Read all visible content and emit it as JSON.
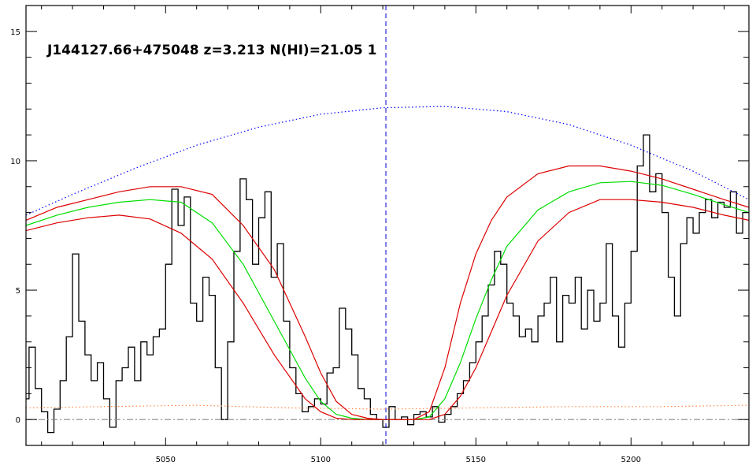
{
  "chart_data": {
    "type": "line",
    "title": "J144127.66+475048 z=3.213 N(HI)=21.05 1",
    "xlabel": "",
    "ylabel": "",
    "xlim": [
      5005,
      5238
    ],
    "ylim": [
      -1,
      16
    ],
    "xticks": [
      5050,
      5100,
      5150,
      5200
    ],
    "yticks": [
      0,
      5,
      10,
      15
    ],
    "grid": false,
    "legend": "none",
    "colors": {
      "flux": "#000000",
      "model": "#00dd00",
      "model_bounds": "#dd0000",
      "continuum": "#0000ff",
      "error": "#ff8844",
      "zero": "#888888",
      "center": "#0000cc"
    },
    "center_line_x": 5121,
    "series": [
      {
        "style": "step",
        "color": "#000000",
        "x": [
          5005,
          5007,
          5009,
          5011,
          5013,
          5015,
          5017,
          5019,
          5021,
          5023,
          5025,
          5027,
          5029,
          5031,
          5033,
          5035,
          5037,
          5039,
          5041,
          5043,
          5045,
          5047,
          5049,
          5051,
          5053,
          5055,
          5057,
          5059,
          5061,
          5063,
          5065,
          5067,
          5069,
          5071,
          5073,
          5075,
          5077,
          5079,
          5081,
          5083,
          5085,
          5087,
          5089,
          5091,
          5093,
          5095,
          5097,
          5099,
          5101,
          5103,
          5105,
          5107,
          5109,
          5111,
          5113,
          5115,
          5117,
          5119,
          5121,
          5123,
          5125,
          5127,
          5129,
          5131,
          5133,
          5135,
          5137,
          5139,
          5141,
          5143,
          5145,
          5147,
          5149,
          5151,
          5153,
          5155,
          5157,
          5159,
          5161,
          5163,
          5165,
          5167,
          5169,
          5171,
          5173,
          5175,
          5177,
          5179,
          5181,
          5183,
          5185,
          5187,
          5189,
          5191,
          5193,
          5195,
          5197,
          5199,
          5201,
          5203,
          5205,
          5207,
          5209,
          5211,
          5213,
          5215,
          5217,
          5219,
          5221,
          5223,
          5225,
          5227,
          5229,
          5231,
          5233,
          5235,
          5237
        ],
        "y": [
          0.8,
          2.8,
          1.2,
          0.3,
          -0.5,
          0.4,
          1.5,
          3.2,
          6.4,
          3.8,
          2.5,
          1.5,
          2.2,
          0.8,
          -0.3,
          1.5,
          2.0,
          2.8,
          1.5,
          3.0,
          2.5,
          3.2,
          3.5,
          6.0,
          8.9,
          7.5,
          8.6,
          4.5,
          3.8,
          5.5,
          4.8,
          2.0,
          0.0,
          3.0,
          6.5,
          9.3,
          8.5,
          6.0,
          7.8,
          8.8,
          5.5,
          6.8,
          3.8,
          2.0,
          1.0,
          0.3,
          0.5,
          0.8,
          0.6,
          1.8,
          2.0,
          4.3,
          3.5,
          2.5,
          1.2,
          0.8,
          0.2,
          0.0,
          -0.3,
          0.5,
          0.0,
          0.1,
          -0.2,
          0.2,
          0.3,
          0.1,
          0.5,
          -0.1,
          0.2,
          0.5,
          1.0,
          1.5,
          2.2,
          3.0,
          4.0,
          5.2,
          6.5,
          6.0,
          4.5,
          4.0,
          3.2,
          3.5,
          3.0,
          4.0,
          4.5,
          5.5,
          3.0,
          4.8,
          4.5,
          5.5,
          3.5,
          5.0,
          3.8,
          4.5,
          6.8,
          4.0,
          2.8,
          4.5,
          6.5,
          9.8,
          11.0,
          8.8,
          9.5,
          8.0,
          5.5,
          4.0,
          6.8,
          7.8,
          7.2,
          8.0,
          8.5,
          7.8,
          8.4,
          8.2,
          8.8,
          7.2,
          8.0
        ]
      },
      {
        "style": "line",
        "color": "#0000ff",
        "dash": "dotted",
        "x": [
          5005,
          5020,
          5040,
          5060,
          5080,
          5100,
          5120,
          5140,
          5160,
          5180,
          5200,
          5220,
          5238
        ],
        "y": [
          7.9,
          8.7,
          9.7,
          10.6,
          11.3,
          11.8,
          12.05,
          12.1,
          11.9,
          11.4,
          10.6,
          9.6,
          8.5
        ]
      },
      {
        "style": "line",
        "color": "#ff8844",
        "dash": "dotted",
        "x": [
          5005,
          5030,
          5060,
          5090,
          5120,
          5150,
          5180,
          5210,
          5238
        ],
        "y": [
          0.45,
          0.5,
          0.55,
          0.45,
          0.4,
          0.45,
          0.5,
          0.5,
          0.55
        ]
      },
      {
        "style": "line",
        "color": "#888888",
        "dash": "dashdot",
        "x": [
          5005,
          5238
        ],
        "y": [
          0,
          0
        ]
      },
      {
        "style": "line",
        "color": "#00dd00",
        "x": [
          5005,
          5015,
          5025,
          5035,
          5045,
          5055,
          5065,
          5075,
          5085,
          5095,
          5100,
          5105,
          5110,
          5115,
          5120,
          5125,
          5130,
          5135,
          5140,
          5145,
          5150,
          5155,
          5160,
          5170,
          5180,
          5190,
          5200,
          5210,
          5220,
          5230,
          5238
        ],
        "y": [
          7.5,
          7.9,
          8.2,
          8.4,
          8.5,
          8.4,
          7.6,
          6.0,
          3.8,
          1.6,
          0.7,
          0.2,
          0.05,
          0.0,
          0.0,
          0.0,
          0.0,
          0.1,
          0.8,
          2.2,
          3.9,
          5.4,
          6.7,
          8.1,
          8.8,
          9.15,
          9.2,
          9.05,
          8.7,
          8.3,
          8.0
        ]
      },
      {
        "style": "line",
        "color": "#dd0000",
        "x": [
          5005,
          5015,
          5025,
          5035,
          5045,
          5055,
          5065,
          5075,
          5085,
          5095,
          5100,
          5105,
          5110,
          5115,
          5120,
          5125,
          5130,
          5135,
          5140,
          5145,
          5150,
          5155,
          5160,
          5170,
          5180,
          5190,
          5200,
          5210,
          5220,
          5230,
          5238
        ],
        "y": [
          7.7,
          8.2,
          8.5,
          8.8,
          9.0,
          9.0,
          8.7,
          7.5,
          5.8,
          3.2,
          1.8,
          0.7,
          0.2,
          0.05,
          0.0,
          0.0,
          0.0,
          0.3,
          2.0,
          4.5,
          6.4,
          7.7,
          8.6,
          9.5,
          9.8,
          9.8,
          9.6,
          9.3,
          8.9,
          8.5,
          8.2
        ]
      },
      {
        "style": "line",
        "color": "#dd0000",
        "x": [
          5005,
          5015,
          5025,
          5035,
          5045,
          5055,
          5065,
          5075,
          5085,
          5095,
          5100,
          5105,
          5110,
          5115,
          5120,
          5125,
          5130,
          5135,
          5140,
          5145,
          5150,
          5155,
          5160,
          5170,
          5180,
          5190,
          5200,
          5210,
          5220,
          5230,
          5238
        ],
        "y": [
          7.3,
          7.6,
          7.8,
          7.9,
          7.75,
          7.2,
          6.2,
          4.5,
          2.5,
          0.8,
          0.3,
          0.05,
          0.0,
          0.0,
          0.0,
          0.0,
          0.0,
          0.0,
          0.2,
          0.9,
          2.0,
          3.4,
          4.8,
          6.9,
          8.0,
          8.5,
          8.5,
          8.4,
          8.2,
          7.9,
          7.7
        ]
      }
    ]
  }
}
